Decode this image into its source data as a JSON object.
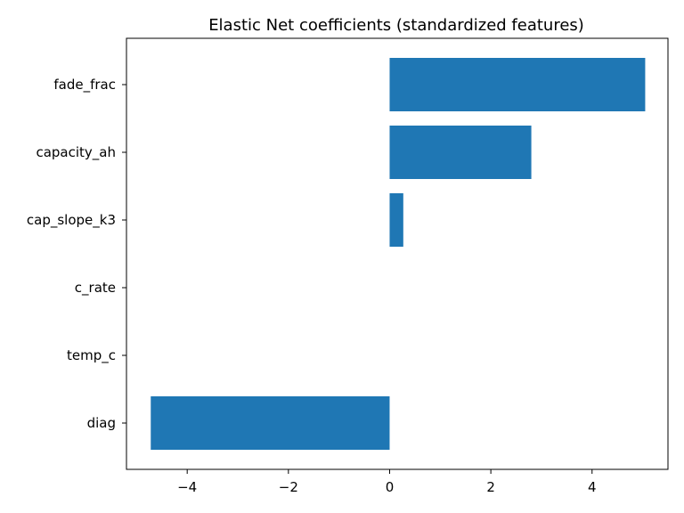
{
  "chart_data": {
    "type": "bar",
    "orientation": "horizontal",
    "title": "Elastic Net coefficients (standardized features)",
    "xlabel": "",
    "ylabel": "",
    "categories": [
      "fade_frac",
      "capacity_ah",
      "cap_slope_k3",
      "c_rate",
      "temp_c",
      "diag"
    ],
    "values": [
      5.05,
      2.8,
      0.27,
      0,
      0,
      -4.72
    ],
    "xlim": [
      -5.2,
      5.5
    ],
    "x_ticks": [
      -4,
      -2,
      0,
      2,
      4
    ],
    "x_tick_labels": [
      "−4",
      "−2",
      "0",
      "2",
      "4"
    ],
    "grid": false,
    "legend": "none",
    "bar_color": "#1f77b4"
  }
}
